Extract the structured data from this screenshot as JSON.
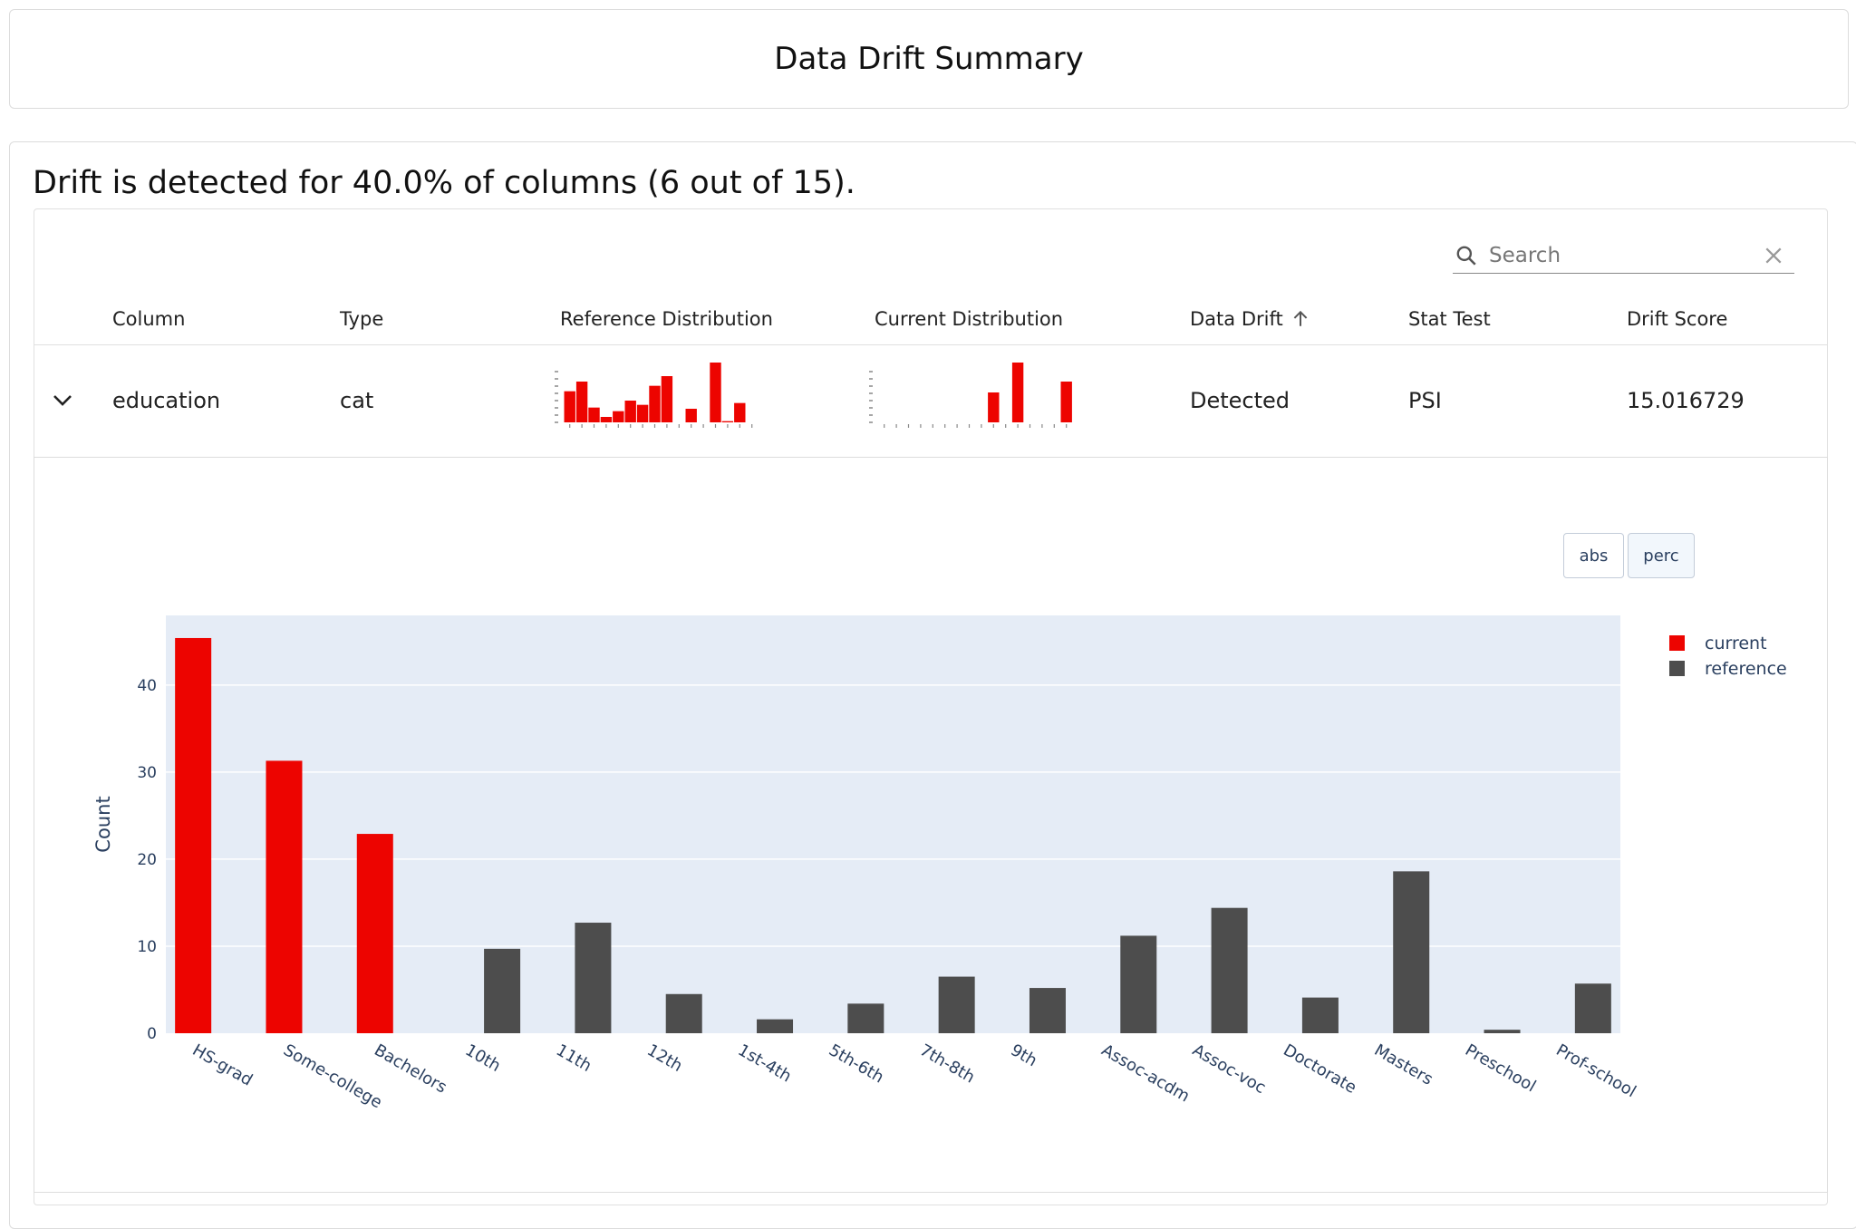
{
  "header": {
    "title": "Data Drift Summary"
  },
  "summary": "Drift is detected for 40.0% of columns (6 out of 15).",
  "search": {
    "placeholder": "Search"
  },
  "table": {
    "columns": [
      "Column",
      "Type",
      "Reference Distribution",
      "Current Distribution",
      "Data Drift",
      "Stat Test",
      "Drift Score"
    ],
    "row": {
      "column": "education",
      "type": "cat",
      "data_drift": "Detected",
      "stat_test": "PSI",
      "drift_score": "15.016729",
      "ref_spark": [
        103,
        135,
        49,
        18,
        37,
        72,
        58,
        121,
        153,
        0,
        45,
        0,
        198,
        4,
        64,
        0
      ],
      "cur_spark": [
        0,
        0,
        0,
        0,
        0,
        0,
        0,
        0,
        0,
        99,
        0,
        198,
        0,
        0,
        0,
        135
      ]
    }
  },
  "buttons": {
    "abs": "abs",
    "perc": "perc"
  },
  "colors": {
    "current": "#ed0400",
    "reference": "#4d4d4d",
    "plot_bg": "#e5ecf6",
    "axis_text": "#2a3f5f"
  },
  "chart_data": {
    "type": "bar",
    "ylabel": "Count",
    "ylim": [
      0,
      48
    ],
    "yticks": [
      0,
      10,
      20,
      30,
      40
    ],
    "categories": [
      "HS-grad",
      "Some-college",
      "Bachelors",
      "10th",
      "11th",
      "12th",
      "1st-4th",
      "5th-6th",
      "7th-8th",
      "9th",
      "Assoc-acdm",
      "Assoc-voc",
      "Doctorate",
      "Masters",
      "Preschool",
      "Prof-school"
    ],
    "series": [
      {
        "name": "current",
        "values": [
          45.4,
          31.3,
          22.9,
          0,
          0,
          0,
          0,
          0,
          0,
          0,
          0,
          0,
          0,
          0,
          0,
          0
        ]
      },
      {
        "name": "reference",
        "values": [
          0,
          0,
          0,
          9.7,
          12.7,
          4.5,
          1.6,
          3.4,
          6.5,
          5.2,
          11.2,
          14.4,
          4.1,
          18.6,
          0.4,
          5.7
        ]
      }
    ],
    "legend": "top-right"
  }
}
